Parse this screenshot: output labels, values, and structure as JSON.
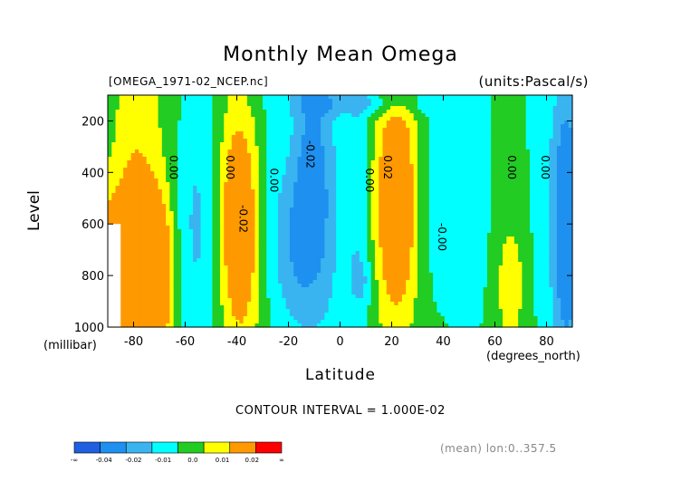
{
  "chart_data": {
    "type": "heatmap",
    "title": "Monthly Mean Omega",
    "file_label": "[OMEGA_1971-02_NCEP.nc]",
    "units_label": "(units:Pascal/s)",
    "xlabel": "Latitude",
    "x_unit_label": "(degrees_north)",
    "ylabel": "Level",
    "y_unit_label": "(millibar)",
    "xlim": [
      -90,
      90
    ],
    "ylim": [
      1000,
      100
    ],
    "x_ticks": [
      "-80",
      "-60",
      "-40",
      "-20",
      "0",
      "20",
      "40",
      "60",
      "80"
    ],
    "x_tick_values": [
      -80,
      -60,
      -40,
      -20,
      0,
      20,
      40,
      60,
      80
    ],
    "y_ticks": [
      "200",
      "400",
      "600",
      "800",
      "1000"
    ],
    "y_tick_values": [
      200,
      400,
      600,
      800,
      1000
    ],
    "contour_interval_label": "CONTOUR INTERVAL = 1.000E-02",
    "mean_label": "(mean) lon:0..357.5",
    "contour_labels": [
      {
        "text": "0.00",
        "lat": -66,
        "lev": 380
      },
      {
        "text": "0.00",
        "lat": -44,
        "lev": 380
      },
      {
        "text": "-0.02",
        "lat": -39,
        "lev": 580
      },
      {
        "text": "0.00",
        "lat": -27,
        "lev": 430
      },
      {
        "text": "-0.02",
        "lat": -13,
        "lev": 330
      },
      {
        "text": "0.00",
        "lat": 10,
        "lev": 430
      },
      {
        "text": "0.02",
        "lat": 17,
        "lev": 380
      },
      {
        "text": "-0.00",
        "lat": 38,
        "lev": 650
      },
      {
        "text": "0.00",
        "lat": 65,
        "lev": 380
      },
      {
        "text": "0.00",
        "lat": 78,
        "lev": 380
      }
    ],
    "levels": [
      -0.04,
      -0.02,
      -0.01,
      0.0,
      0.01,
      0.02
    ],
    "colorbar": {
      "tick_labels": [
        "-∞",
        "-0.04",
        "-0.02",
        "-0.01",
        "0.0",
        "0.01",
        "0.02",
        "∞"
      ],
      "colors": [
        "#1f5fe0",
        "#1e90f0",
        "#3ab4f0",
        "#00ffff",
        "#22cc22",
        "#ffff00",
        "#ff9900",
        "#ff0000"
      ]
    },
    "grid": false
  }
}
